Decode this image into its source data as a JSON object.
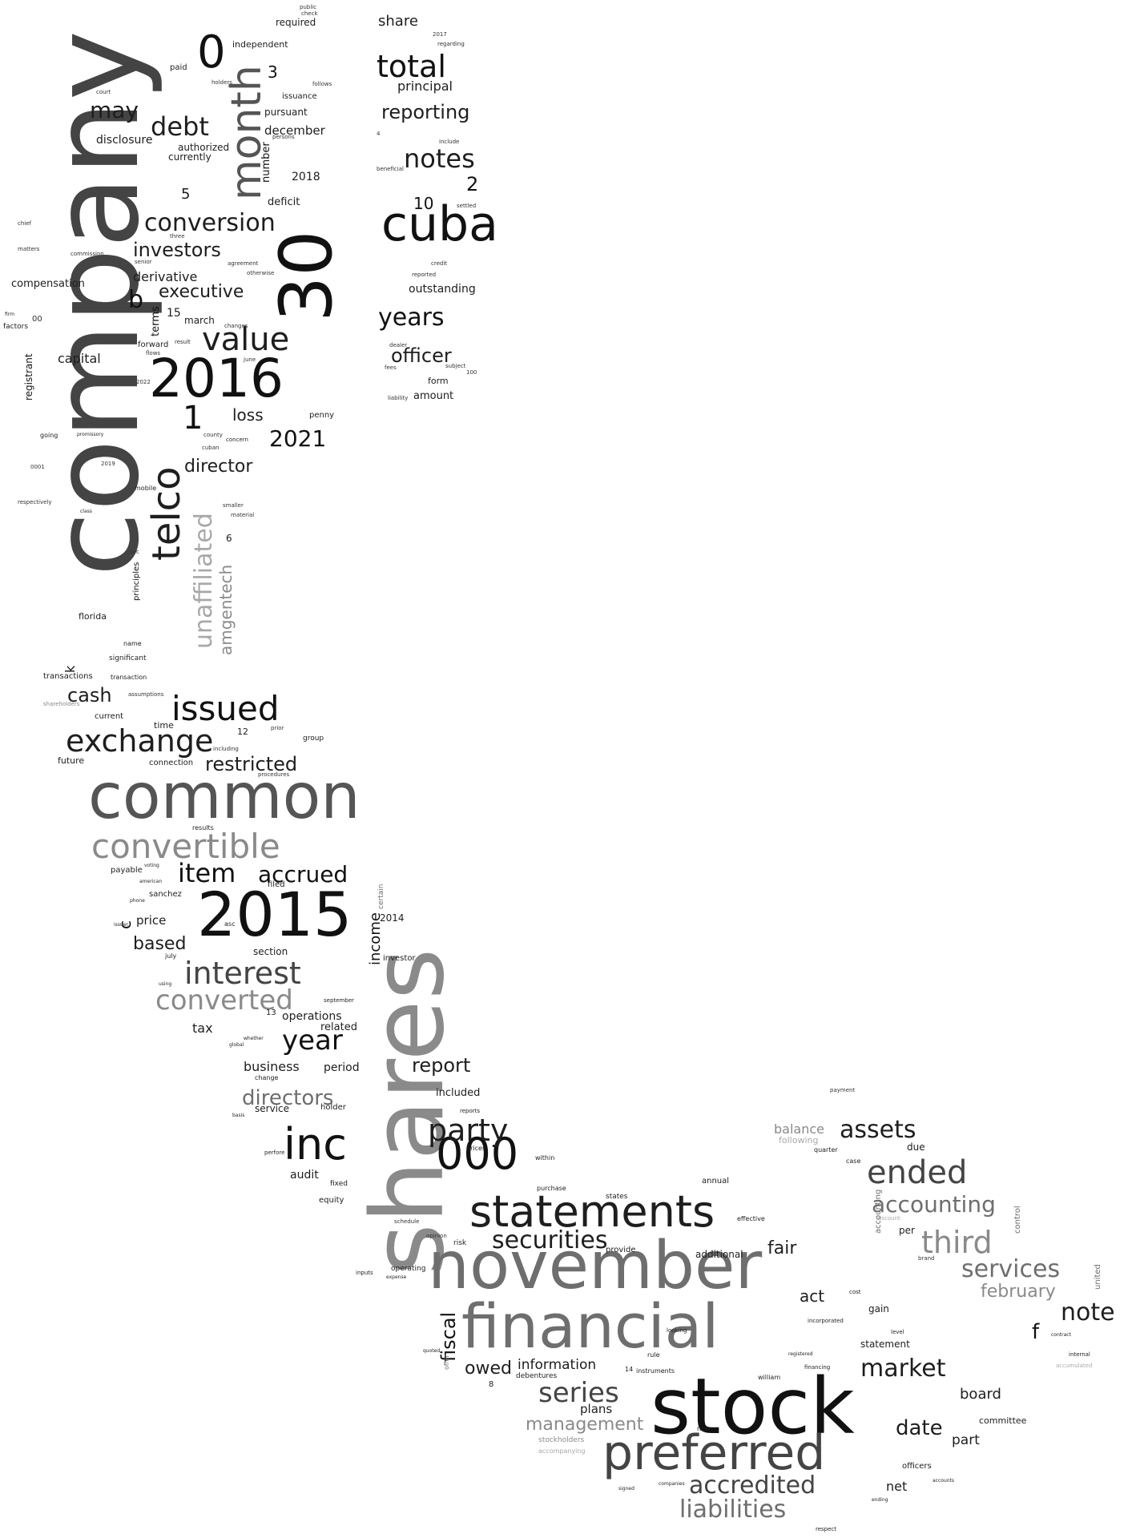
{
  "words": {
    "company": "company",
    "shares": "shares",
    "stock": "stock",
    "november": "november",
    "financial": "financial",
    "common": "common",
    "preferred": "preferred",
    "statements": "statements",
    "w2016": "2016",
    "w2015": "2015",
    "cuba": "cuba",
    "inc": "inc",
    "w000": "000",
    "w30": "30",
    "month": "month",
    "convertible": "convertible",
    "telco": "telco",
    "issued": "issued",
    "exchange": "exchange",
    "unaffiliated": "unaffiliated",
    "interest": "interest",
    "party": "party",
    "converted": "converted",
    "ended": "ended",
    "value": "value",
    "total": "total",
    "accounting": "accounting",
    "securities": "securities",
    "third": "third",
    "series": "series",
    "accredited": "accredited",
    "liabilities": "liabilities",
    "item": "item",
    "accrued": "accrued",
    "conversion": "conversion",
    "services": "services",
    "notes": "notes",
    "w0": "0",
    "debt": "debt",
    "may": "may",
    "year": "year",
    "years": "years",
    "directors": "directors",
    "restricted": "restricted",
    "market": "market",
    "assets": "assets",
    "note": "note",
    "reporting": "reporting",
    "investors": "investors",
    "executive": "executive",
    "director": "director",
    "w2021": "2021",
    "officer": "officer",
    "report": "report",
    "cash": "cash",
    "date": "date",
    "based": "based",
    "w1": "1",
    "amgentech": "amgentech",
    "fiscal": "fiscal",
    "management": "management",
    "february": "february",
    "loss": "loss",
    "owed": "owed",
    "fair": "fair",
    "derivative": "derivative",
    "capital": "capital",
    "share": "share",
    "w2": "2",
    "w3": "3",
    "w10": "10",
    "principal": "principal",
    "december": "december",
    "outstanding": "outstanding",
    "disclosure": "disclosure",
    "compensation": "compensation",
    "information": "information",
    "board": "board",
    "income": "income",
    "operations": "operations",
    "business": "business",
    "section": "section",
    "price": "price",
    "act": "act",
    "plans": "plans",
    "net": "net",
    "part": "part",
    "balance": "balance",
    "f": "f",
    "b": "b",
    "c": "c",
    "k": "k",
    "tax": "tax",
    "period": "period",
    "related": "related",
    "included": "included",
    "audit": "audit",
    "service": "service",
    "holder": "holder",
    "w2018": "2018",
    "deficit": "deficit",
    "pursuant": "pursuant",
    "authorized": "authorized",
    "currently": "currently",
    "independent": "independent",
    "required": "required",
    "issuance": "issuance",
    "march": "march",
    "terms": "terms",
    "forward": "forward",
    "amount": "amount",
    "form": "form",
    "number": "number",
    "w5": "5",
    "w15": "15",
    "w12": "12",
    "w6": "6",
    "w13": "13",
    "w2014": "2014",
    "penny": "penny",
    "group": "group",
    "time": "time",
    "current": "current",
    "future": "future",
    "connection": "connection",
    "transactions": "transactions",
    "transaction": "transaction",
    "significant": "significant",
    "florida": "florida",
    "name": "name",
    "results": "results",
    "payable": "payable",
    "sanchez": "sanchez",
    "filed": "filed",
    "july": "july",
    "investor": "investor",
    "september": "september",
    "mobile": "mobile",
    "going": "going",
    "promissory": "promissory",
    "concern": "concern",
    "class": "class",
    "principles": "principles",
    "registrant": "registrant",
    "factors": "factors",
    "firm": "firm",
    "voting": "voting",
    "american": "american",
    "phone": "phone",
    "issuer": "issuer",
    "using": "using",
    "asc": "asc",
    "whether": "whether",
    "global": "global",
    "change": "change",
    "perfore": "perfore",
    "basis": "basis",
    "reports": "reports",
    "prices": "prices",
    "within": "within",
    "purchase": "purchase",
    "states": "states",
    "risk": "risk",
    "provide": "provide",
    "additional": "additional",
    "annual": "annual",
    "effective": "effective",
    "quarter": "quarter",
    "case": "case",
    "due": "due",
    "per": "per",
    "gain": "gain",
    "cost": "cost",
    "incorporated": "incorporated",
    "statement": "statement",
    "level": "level",
    "william": "william",
    "financing": "financing",
    "registered": "registered",
    "debentures": "debentures",
    "instruments": "instruments",
    "rule": "rule",
    "looking": "looking",
    "committee": "committee",
    "officers": "officers",
    "accounts": "accounts",
    "ending": "ending",
    "respect": "respect",
    "companies": "companies",
    "signed": "signed",
    "stockholders": "stockholders",
    "accompanying": "accompanying",
    "new": "new",
    "following": "following",
    "discount": "discount",
    "control": "control",
    "united": "united",
    "internal": "internal",
    "contract": "contract",
    "certain": "certain",
    "equity": "equity",
    "fixed": "fixed",
    "offer": "offer",
    "schedule": "schedule",
    "opinion": "opinion",
    "operating": "operating",
    "expense": "expense",
    "inputs": "inputs",
    "quoted": "quoted",
    "w14": "14",
    "w8": "8",
    "paid": "paid",
    "public": "public",
    "check": "check",
    "w2017": "2017",
    "regarding": "regarding",
    "include": "include",
    "beneficial": "beneficial",
    "settled": "settled",
    "credit": "credit",
    "reported": "reported",
    "subject": "subject",
    "w100": "100",
    "liability": "liability",
    "fees": "fees",
    "dealer": "dealer",
    "w4": "4",
    "senior": "senior",
    "agreement": "agreement",
    "otherwise": "otherwise",
    "three": "three",
    "changes": "changes",
    "result": "result",
    "flows": "flows",
    "june": "june",
    "county": "county",
    "cuban": "cuban",
    "smaller": "smaller",
    "material": "material",
    "commission": "commission",
    "matters": "matters",
    "chief": "chief",
    "w00": "00",
    "w2022": "2022",
    "w2019": "2019",
    "respectively": "respectively",
    "w0001": "0001",
    "sec": "sec",
    "shareholders": "shareholders",
    "assumptions": "assumptions",
    "including": "including",
    "prior": "prior",
    "procedures": "procedures",
    "persons": "persons",
    "holders": "holders",
    "follows": "follows",
    "court": "court",
    "brand": "brand",
    "payment": "payment",
    "accumulated": "accumulated"
  }
}
